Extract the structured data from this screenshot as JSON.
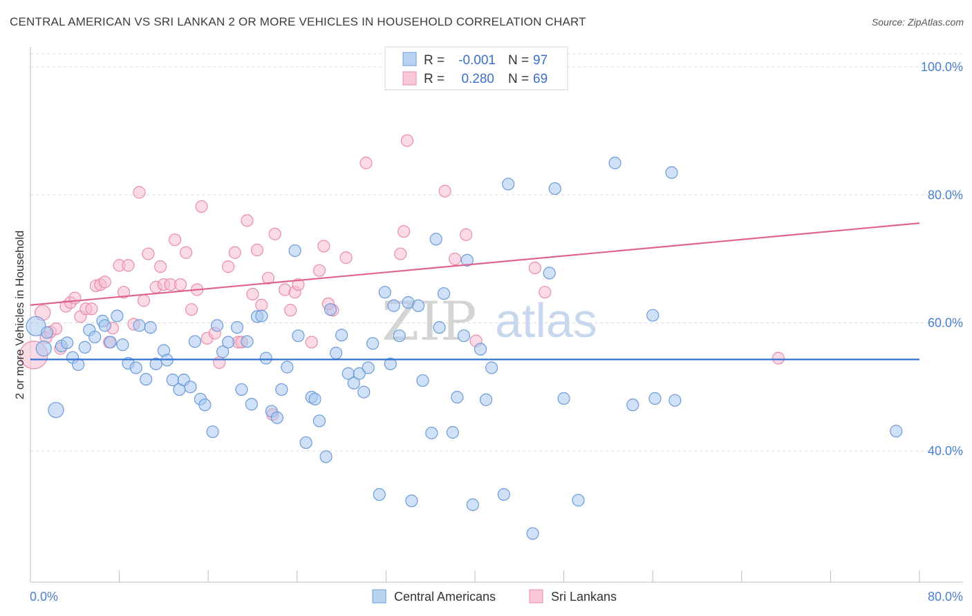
{
  "title": "CENTRAL AMERICAN VS SRI LANKAN 2 OR MORE VEHICLES IN HOUSEHOLD CORRELATION CHART",
  "source": "Source: ZipAtlas.com",
  "watermark": {
    "zip": "ZIP",
    "atlas": "atlas"
  },
  "colors": {
    "blue_fill": "#a9c8f0",
    "blue_stroke": "#6b9ad8",
    "blue_line": "#2e6fd0",
    "pink_fill": "#f6bcd0",
    "pink_stroke": "#e98cab",
    "pink_line": "#e0638f",
    "grid": "#d8d8d8",
    "tick_text": "#4a7fcf"
  },
  "legend_top": {
    "rows": [
      {
        "r_label": "R =",
        "r_value": "-0.001",
        "n_label": "N =",
        "n_value": "97"
      },
      {
        "r_label": "R =",
        "r_value": "0.280",
        "n_label": "N =",
        "n_value": "69"
      }
    ]
  },
  "legend_bottom": [
    "Central Americans",
    "Sri Lankans"
  ],
  "chart_data": {
    "type": "scatter",
    "title": "CENTRAL AMERICAN VS SRI LANKAN 2 OR MORE VEHICLES IN HOUSEHOLD CORRELATION CHART",
    "xlabel": "",
    "ylabel": "2 or more Vehicles in Household",
    "xlim": [
      0,
      80
    ],
    "ylim": [
      20,
      102
    ],
    "x_tick_labels": [
      "0.0%",
      "80.0%"
    ],
    "y_ticks": [
      40,
      60,
      80,
      100
    ],
    "y_tick_labels": [
      "40.0%",
      "60.0%",
      "80.0%",
      "100.0%"
    ],
    "grid": true,
    "legend": "top-center",
    "series": [
      {
        "name": "Central Americans",
        "trend": {
          "x": [
            0,
            80
          ],
          "y": [
            54.3,
            54.3
          ]
        },
        "points": [
          [
            0.5,
            59.5
          ],
          [
            1.2,
            56.0
          ],
          [
            1.5,
            58.5
          ],
          [
            2.3,
            46.4
          ],
          [
            2.8,
            56.4
          ],
          [
            3.3,
            56.9
          ],
          [
            3.8,
            54.6
          ],
          [
            4.3,
            53.5
          ],
          [
            4.9,
            56.2
          ],
          [
            5.3,
            58.9
          ],
          [
            5.8,
            57.8
          ],
          [
            6.5,
            60.3
          ],
          [
            6.7,
            59.6
          ],
          [
            7.2,
            57.0
          ],
          [
            7.8,
            61.1
          ],
          [
            8.3,
            56.6
          ],
          [
            8.8,
            53.7
          ],
          [
            9.5,
            53.0
          ],
          [
            9.8,
            59.6
          ],
          [
            10.4,
            51.2
          ],
          [
            10.8,
            59.3
          ],
          [
            11.3,
            53.6
          ],
          [
            12.0,
            55.7
          ],
          [
            12.3,
            54.2
          ],
          [
            12.8,
            51.1
          ],
          [
            13.4,
            49.6
          ],
          [
            13.8,
            51.1
          ],
          [
            14.4,
            50.0
          ],
          [
            14.8,
            57.1
          ],
          [
            15.3,
            48.1
          ],
          [
            15.7,
            47.2
          ],
          [
            16.4,
            43.0
          ],
          [
            16.8,
            59.6
          ],
          [
            17.3,
            55.5
          ],
          [
            17.8,
            57.0
          ],
          [
            18.6,
            59.3
          ],
          [
            19.0,
            49.6
          ],
          [
            19.5,
            57.1
          ],
          [
            19.9,
            47.3
          ],
          [
            20.4,
            61.0
          ],
          [
            20.8,
            61.1
          ],
          [
            21.2,
            54.5
          ],
          [
            21.7,
            46.2
          ],
          [
            22.2,
            45.2
          ],
          [
            22.6,
            49.6
          ],
          [
            23.1,
            53.1
          ],
          [
            23.8,
            71.3
          ],
          [
            24.1,
            58.0
          ],
          [
            24.8,
            41.3
          ],
          [
            25.3,
            48.4
          ],
          [
            25.6,
            48.1
          ],
          [
            26.0,
            44.7
          ],
          [
            26.6,
            39.1
          ],
          [
            27.0,
            62.1
          ],
          [
            27.5,
            55.3
          ],
          [
            28.0,
            58.1
          ],
          [
            28.6,
            52.1
          ],
          [
            29.1,
            50.6
          ],
          [
            29.6,
            52.1
          ],
          [
            30.0,
            49.2
          ],
          [
            30.4,
            53.0
          ],
          [
            30.8,
            56.8
          ],
          [
            31.4,
            33.2
          ],
          [
            31.9,
            64.8
          ],
          [
            32.4,
            53.6
          ],
          [
            32.7,
            62.7
          ],
          [
            33.2,
            58.0
          ],
          [
            34.0,
            63.2
          ],
          [
            34.3,
            32.2
          ],
          [
            34.9,
            62.7
          ],
          [
            35.3,
            51.0
          ],
          [
            36.1,
            42.8
          ],
          [
            36.5,
            73.1
          ],
          [
            36.8,
            59.3
          ],
          [
            37.2,
            64.6
          ],
          [
            38.0,
            42.9
          ],
          [
            38.4,
            48.4
          ],
          [
            39.0,
            58.0
          ],
          [
            39.3,
            69.8
          ],
          [
            39.8,
            31.6
          ],
          [
            40.5,
            55.9
          ],
          [
            41.0,
            48.0
          ],
          [
            41.5,
            53.0
          ],
          [
            42.6,
            33.2
          ],
          [
            43.0,
            81.7
          ],
          [
            45.2,
            27.1
          ],
          [
            46.7,
            67.8
          ],
          [
            47.2,
            81.0
          ],
          [
            48.0,
            48.2
          ],
          [
            49.3,
            32.3
          ],
          [
            52.6,
            85.0
          ],
          [
            54.2,
            47.2
          ],
          [
            56.0,
            61.2
          ],
          [
            56.2,
            48.2
          ],
          [
            57.7,
            83.5
          ],
          [
            58.0,
            47.9
          ],
          [
            77.9,
            43.1
          ]
        ]
      },
      {
        "name": "Sri Lankans",
        "trend": {
          "x": [
            0,
            80
          ],
          "y": [
            62.8,
            75.6
          ]
        },
        "points": [
          [
            0.3,
            55.0
          ],
          [
            1.1,
            61.6
          ],
          [
            1.4,
            57.7
          ],
          [
            1.8,
            58.6
          ],
          [
            2.3,
            59.1
          ],
          [
            2.7,
            56.0
          ],
          [
            3.2,
            62.6
          ],
          [
            3.6,
            63.2
          ],
          [
            4.0,
            63.9
          ],
          [
            4.5,
            61.0
          ],
          [
            5.0,
            62.2
          ],
          [
            5.5,
            62.2
          ],
          [
            5.9,
            65.8
          ],
          [
            6.3,
            66.0
          ],
          [
            6.7,
            66.4
          ],
          [
            7.1,
            57.0
          ],
          [
            7.4,
            59.2
          ],
          [
            8.0,
            69.0
          ],
          [
            8.4,
            64.8
          ],
          [
            8.8,
            69.0
          ],
          [
            9.3,
            59.8
          ],
          [
            9.8,
            80.4
          ],
          [
            10.2,
            63.5
          ],
          [
            10.6,
            70.8
          ],
          [
            11.3,
            65.6
          ],
          [
            11.7,
            68.8
          ],
          [
            12.0,
            66.0
          ],
          [
            12.6,
            66.0
          ],
          [
            13.0,
            73.0
          ],
          [
            13.5,
            66.0
          ],
          [
            14.0,
            71.0
          ],
          [
            14.5,
            62.1
          ],
          [
            15.0,
            65.2
          ],
          [
            15.4,
            78.2
          ],
          [
            15.9,
            57.6
          ],
          [
            16.6,
            58.4
          ],
          [
            17.0,
            53.8
          ],
          [
            17.8,
            68.8
          ],
          [
            18.4,
            71.0
          ],
          [
            18.7,
            57.0
          ],
          [
            19.0,
            57.0
          ],
          [
            19.5,
            76.0
          ],
          [
            20.0,
            64.5
          ],
          [
            20.4,
            71.4
          ],
          [
            20.8,
            62.8
          ],
          [
            21.4,
            67.0
          ],
          [
            21.8,
            45.7
          ],
          [
            22.0,
            73.9
          ],
          [
            22.9,
            65.2
          ],
          [
            23.4,
            62.0
          ],
          [
            23.8,
            64.8
          ],
          [
            24.1,
            66.0
          ],
          [
            25.3,
            57.0
          ],
          [
            26.0,
            68.2
          ],
          [
            26.4,
            72.0
          ],
          [
            27.2,
            62.0
          ],
          [
            28.4,
            70.2
          ],
          [
            30.2,
            85.0
          ],
          [
            33.3,
            70.8
          ],
          [
            33.6,
            74.3
          ],
          [
            33.9,
            88.5
          ],
          [
            37.3,
            80.6
          ],
          [
            38.2,
            70.0
          ],
          [
            39.2,
            73.8
          ],
          [
            40.1,
            57.2
          ],
          [
            45.4,
            68.6
          ],
          [
            46.3,
            64.8
          ],
          [
            67.3,
            54.5
          ],
          [
            26.8,
            63.0
          ]
        ]
      }
    ]
  }
}
